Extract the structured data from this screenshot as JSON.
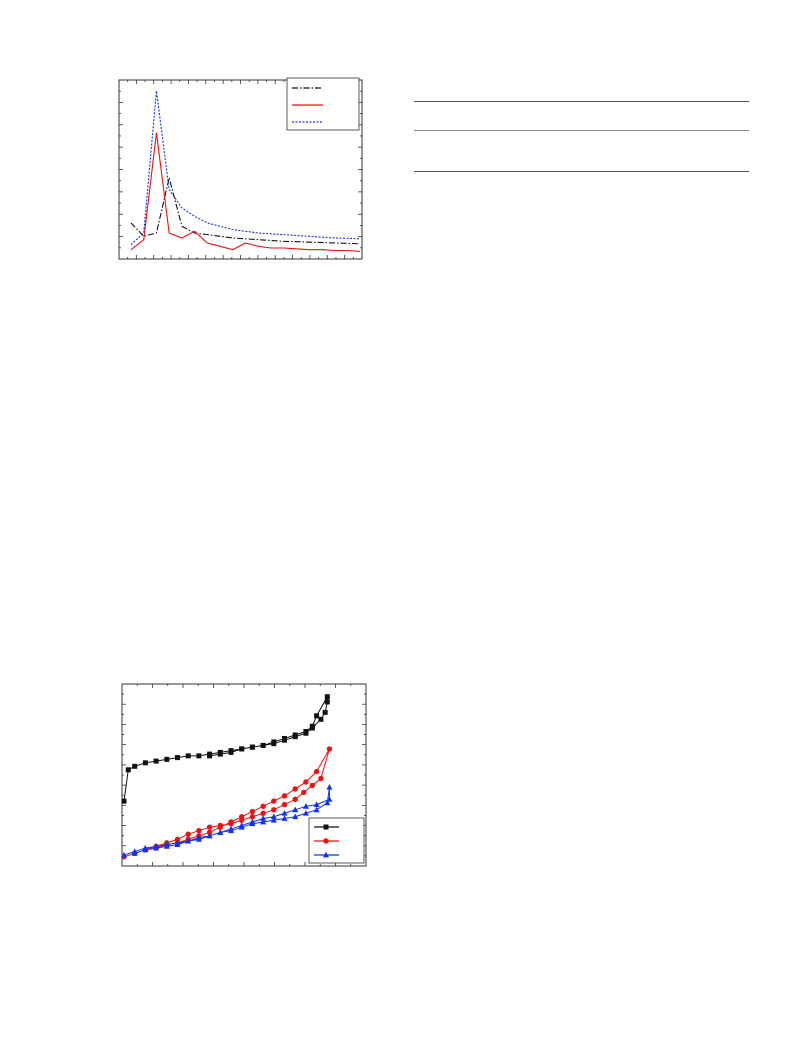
{
  "chart_data": [
    {
      "type": "line",
      "x": [
        0,
        1,
        2,
        3,
        4,
        5,
        6,
        7,
        8,
        9,
        10,
        11,
        12,
        13,
        14,
        15,
        16,
        17,
        18
      ],
      "xlim": [
        0,
        18
      ],
      "ylim": [
        0,
        100
      ],
      "series": [
        {
          "color": "#111111",
          "style": "dash-dot",
          "values": [
            18,
            10,
            12,
            45,
            16,
            12,
            11,
            10,
            9,
            8.5,
            8,
            7.5,
            7,
            6.8,
            6.5,
            6.3,
            6,
            5.8,
            5.5
          ]
        },
        {
          "color": "#ee1111",
          "style": "solid",
          "values": [
            2,
            8,
            72,
            12,
            9,
            13,
            6,
            4,
            2,
            6,
            4,
            3,
            3,
            2.5,
            2,
            2,
            1.5,
            1.5,
            1
          ]
        },
        {
          "color": "#1133ee",
          "style": "dotted",
          "values": [
            5,
            12,
            97,
            38,
            27,
            22,
            18,
            16,
            14,
            13,
            12,
            11.5,
            11,
            10.5,
            10,
            9.5,
            9,
            8.8,
            8.5
          ]
        }
      ],
      "legend_position": "top-right"
    },
    {
      "type": "line",
      "xlim": [
        0,
        100
      ],
      "ylim": [
        0,
        100
      ],
      "legend_position": "bottom-right",
      "series": [
        {
          "color": "#111111",
          "marker": "square",
          "points": [
            [
              0,
              35
            ],
            [
              2,
              53
            ],
            [
              5,
              55
            ],
            [
              10,
              57
            ],
            [
              15,
              58
            ],
            [
              20,
              59
            ],
            [
              25,
              60
            ],
            [
              30,
              61
            ],
            [
              35,
              61
            ],
            [
              40,
              62
            ],
            [
              45,
              63
            ],
            [
              50,
              64
            ],
            [
              55,
              65
            ],
            [
              60,
              66
            ],
            [
              65,
              67
            ],
            [
              70,
              69
            ],
            [
              75,
              71
            ],
            [
              80,
              73
            ],
            [
              85,
              75
            ],
            [
              88,
              78
            ],
            [
              90,
              84
            ],
            [
              95,
              95
            ],
            [
              95,
              92
            ],
            [
              94,
              86
            ],
            [
              92,
              82
            ],
            [
              88,
              77
            ],
            [
              85,
              74
            ],
            [
              80,
              72
            ],
            [
              75,
              70
            ],
            [
              70,
              68
            ],
            [
              65,
              67
            ],
            [
              60,
              66
            ],
            [
              55,
              65
            ],
            [
              50,
              63
            ],
            [
              45,
              62
            ],
            [
              40,
              61
            ]
          ]
        },
        {
          "color": "#ee1111",
          "marker": "circle",
          "points": [
            [
              0,
              3
            ],
            [
              5,
              5
            ],
            [
              10,
              7
            ],
            [
              15,
              8
            ],
            [
              20,
              10
            ],
            [
              25,
              11
            ],
            [
              30,
              13
            ],
            [
              35,
              15
            ],
            [
              40,
              17
            ],
            [
              45,
              20
            ],
            [
              50,
              23
            ],
            [
              55,
              26
            ],
            [
              60,
              29
            ],
            [
              65,
              32
            ],
            [
              70,
              35
            ],
            [
              75,
              38
            ],
            [
              80,
              42
            ],
            [
              85,
              46
            ],
            [
              90,
              52
            ],
            [
              96,
              65
            ],
            [
              92,
              48
            ],
            [
              88,
              44
            ],
            [
              84,
              40
            ],
            [
              80,
              36
            ],
            [
              75,
              33
            ],
            [
              70,
              30
            ],
            [
              65,
              28
            ],
            [
              60,
              26
            ],
            [
              55,
              24
            ],
            [
              50,
              22
            ],
            [
              45,
              21
            ],
            [
              40,
              20
            ],
            [
              35,
              18
            ],
            [
              30,
              16
            ],
            [
              25,
              13
            ],
            [
              20,
              11
            ],
            [
              15,
              9
            ],
            [
              10,
              7
            ],
            [
              5,
              5
            ]
          ]
        },
        {
          "color": "#1133ee",
          "marker": "triangle",
          "points": [
            [
              0,
              4
            ],
            [
              5,
              6
            ],
            [
              10,
              8
            ],
            [
              15,
              9
            ],
            [
              20,
              10
            ],
            [
              25,
              11
            ],
            [
              30,
              12
            ],
            [
              35,
              14
            ],
            [
              40,
              15
            ],
            [
              45,
              17
            ],
            [
              50,
              19
            ],
            [
              55,
              21
            ],
            [
              60,
              23
            ],
            [
              65,
              25
            ],
            [
              70,
              26
            ],
            [
              75,
              28
            ],
            [
              80,
              30
            ],
            [
              85,
              32
            ],
            [
              90,
              33
            ],
            [
              96,
              36
            ],
            [
              96,
              43
            ],
            [
              95,
              34
            ],
            [
              90,
              30
            ],
            [
              85,
              28
            ],
            [
              80,
              26
            ],
            [
              75,
              25
            ],
            [
              70,
              24
            ],
            [
              65,
              23
            ],
            [
              60,
              22
            ],
            [
              55,
              20
            ],
            [
              50,
              18
            ],
            [
              45,
              17
            ],
            [
              40,
              15
            ],
            [
              35,
              13
            ],
            [
              30,
              12
            ],
            [
              25,
              10
            ],
            [
              20,
              9
            ],
            [
              15,
              8
            ],
            [
              10,
              7
            ],
            [
              5,
              5
            ]
          ]
        }
      ]
    }
  ]
}
